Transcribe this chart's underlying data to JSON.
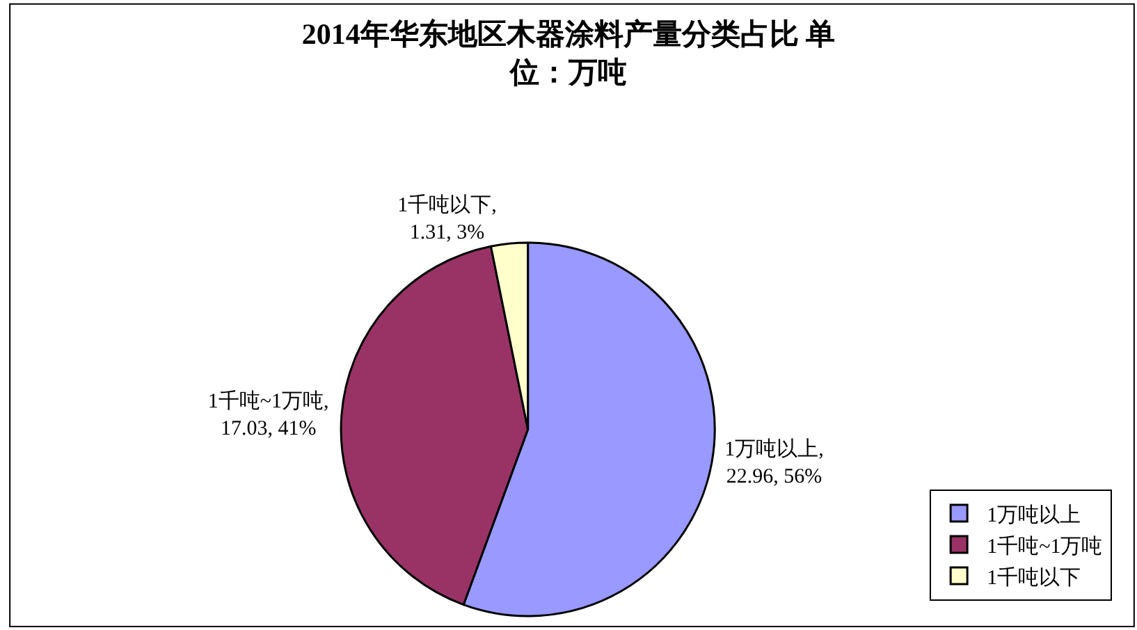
{
  "chart_data": {
    "type": "pie",
    "title": "2014年华东地区木器涂料产量分类占比 单位：万吨",
    "categories": [
      "1万吨以上",
      "1千吨~1万吨",
      "1千吨以下"
    ],
    "values": [
      22.96,
      17.03,
      1.31
    ],
    "colors": [
      "#9999ff",
      "#993366",
      "#ffffcc"
    ],
    "value_labels": [
      "1万吨以上,\n22.96, 56%",
      "1千吨~1万吨,\n17.03, 41%",
      "1千吨以下,\n1.31, 3%"
    ],
    "legend": "bottom right"
  }
}
